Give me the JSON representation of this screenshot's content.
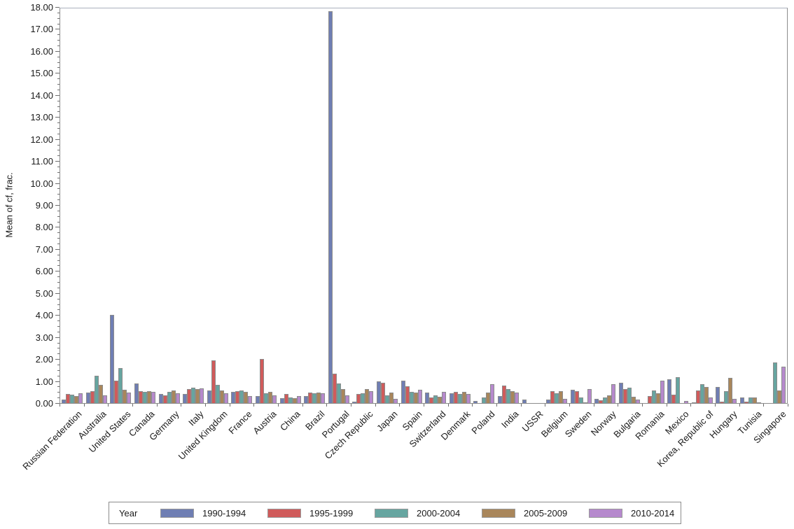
{
  "figure": {
    "background": "#ffffff"
  },
  "chart_data": {
    "type": "bar",
    "title": "",
    "xlabel": "",
    "ylabel": "Mean of cf, frac.",
    "ylim": [
      0,
      18
    ],
    "y_tick_step": 1.0,
    "y_tick_labels": [
      "0.00",
      "1.00",
      "2.00",
      "3.00",
      "4.00",
      "5.00",
      "6.00",
      "7.00",
      "8.00",
      "9.00",
      "10.00",
      "11.00",
      "12.00",
      "13.00",
      "14.00",
      "15.00",
      "16.00",
      "17.00",
      "18.00"
    ],
    "grid": false,
    "legend_position": "bottom",
    "legend_title": "Year",
    "axis_color": "#8c8c8c",
    "bar_border_color": "#8c8c8c",
    "categories": [
      "Russian Federation",
      "Australia",
      "United States",
      "Canada",
      "Germany",
      "Italy",
      "United Kingdom",
      "France",
      "Austria",
      "China",
      "Brazil",
      "Portugal",
      "Czech Republic",
      "Japan",
      "Spain",
      "Switzerland",
      "Denmark",
      "Poland",
      "India",
      "USSR",
      "Belgium",
      "Sweden",
      "Norway",
      "Bulgaria",
      "Romania",
      "Mexico",
      "Korea, Republic of",
      "Hungary",
      "Tunisia",
      "Singapore"
    ],
    "series": [
      {
        "name": "1990-1994",
        "color": "#6F7EB3",
        "values": [
          0.15,
          0.47,
          4.0,
          0.88,
          0.4,
          0.4,
          0.58,
          0.5,
          0.33,
          0.21,
          0.31,
          17.8,
          0.07,
          0.97,
          1.02,
          0.48,
          0.45,
          0.08,
          0.32,
          0.17,
          0.17,
          0.6,
          0.19,
          0.92,
          0.0,
          1.08,
          0.04,
          0.74,
          0.25,
          0.0
        ]
      },
      {
        "name": "1995-1999",
        "color": "#D05B5B",
        "values": [
          0.4,
          0.54,
          1.02,
          0.55,
          0.34,
          0.63,
          1.95,
          0.54,
          2.0,
          0.41,
          0.48,
          1.33,
          0.41,
          0.91,
          0.77,
          0.27,
          0.52,
          0.0,
          0.78,
          0.0,
          0.54,
          0.55,
          0.14,
          0.63,
          0.32,
          0.38,
          0.57,
          0.06,
          0.05,
          0.0
        ]
      },
      {
        "name": "2000-2004",
        "color": "#66A5A0",
        "values": [
          0.38,
          1.25,
          1.6,
          0.5,
          0.52,
          0.7,
          0.84,
          0.56,
          0.46,
          0.25,
          0.44,
          0.88,
          0.44,
          0.34,
          0.5,
          0.34,
          0.4,
          0.24,
          0.65,
          0.0,
          0.44,
          0.26,
          0.24,
          0.69,
          0.56,
          1.17,
          0.87,
          0.55,
          0.25,
          1.83
        ]
      },
      {
        "name": "2005-2009",
        "color": "#A9865B",
        "values": [
          0.33,
          0.82,
          0.6,
          0.55,
          0.58,
          0.63,
          0.56,
          0.5,
          0.5,
          0.23,
          0.48,
          0.63,
          0.65,
          0.47,
          0.48,
          0.3,
          0.52,
          0.49,
          0.53,
          0.0,
          0.54,
          0.02,
          0.35,
          0.28,
          0.43,
          0.0,
          0.72,
          1.16,
          0.25,
          0.57
        ]
      },
      {
        "name": "2010-2014",
        "color": "#B689CD",
        "values": [
          0.44,
          0.35,
          0.48,
          0.52,
          0.46,
          0.66,
          0.45,
          0.31,
          0.36,
          0.31,
          0.46,
          0.35,
          0.54,
          0.18,
          0.61,
          0.5,
          0.4,
          0.85,
          0.48,
          0.0,
          0.19,
          0.65,
          0.85,
          0.17,
          1.02,
          0.08,
          0.25,
          0.18,
          0.03,
          1.65
        ]
      }
    ]
  }
}
